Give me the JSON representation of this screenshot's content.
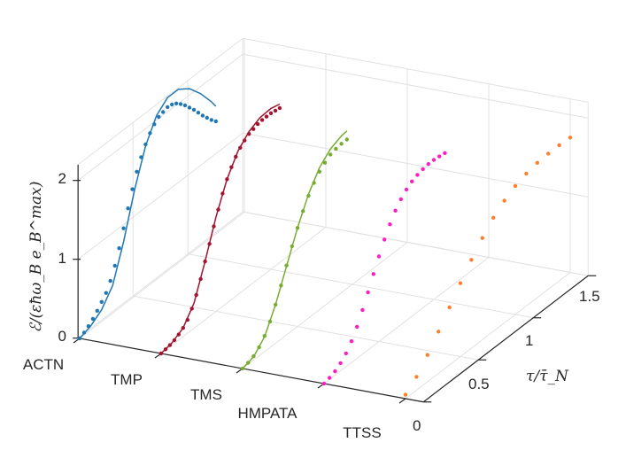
{
  "chart_data": {
    "type": "3d-line-scatter",
    "title": "",
    "xlabel": "",
    "ylabel": "τ/τ̄_N",
    "zlabel": "ℰ/(εħω_B e_B^max)",
    "categories": [
      "ACTN",
      "TMP",
      "TMS",
      "HMPATA",
      "TTSS"
    ],
    "y_ticks": [
      "0",
      "0.5",
      "1",
      "1.5"
    ],
    "z_ticks": [
      "0",
      "1",
      "2"
    ],
    "ylim": [
      0,
      1.5
    ],
    "zlim": [
      0,
      2.2
    ],
    "grid": true,
    "series": [
      {
        "name": "ACTN",
        "color": "#1f77b4",
        "has_fit_line": true,
        "points": [
          [
            0,
            0.0
          ],
          [
            0.04,
            0.03
          ],
          [
            0.08,
            0.07
          ],
          [
            0.12,
            0.12
          ],
          [
            0.16,
            0.18
          ],
          [
            0.2,
            0.25
          ],
          [
            0.24,
            0.32
          ],
          [
            0.28,
            0.43
          ],
          [
            0.32,
            0.58
          ],
          [
            0.36,
            0.76
          ],
          [
            0.4,
            0.97
          ],
          [
            0.44,
            1.18
          ],
          [
            0.48,
            1.38
          ],
          [
            0.52,
            1.56
          ],
          [
            0.56,
            1.7
          ],
          [
            0.6,
            1.82
          ],
          [
            0.64,
            1.92
          ],
          [
            0.68,
            1.99
          ],
          [
            0.72,
            2.04
          ],
          [
            0.76,
            2.06
          ],
          [
            0.8,
            2.08
          ],
          [
            0.84,
            2.07
          ],
          [
            0.88,
            2.04
          ],
          [
            0.92,
            1.99
          ],
          [
            0.96,
            1.93
          ],
          [
            1.0,
            1.86
          ],
          [
            1.04,
            1.79
          ],
          [
            1.08,
            1.71
          ],
          [
            1.12,
            1.63
          ],
          [
            1.16,
            1.56
          ],
          [
            1.2,
            1.49
          ],
          [
            1.24,
            1.43
          ]
        ],
        "fit": [
          [
            0,
            0
          ],
          [
            0.1,
            0.05
          ],
          [
            0.2,
            0.15
          ],
          [
            0.3,
            0.35
          ],
          [
            0.4,
            0.8
          ],
          [
            0.5,
            1.35
          ],
          [
            0.6,
            1.8
          ],
          [
            0.7,
            2.08
          ],
          [
            0.8,
            2.2
          ],
          [
            0.9,
            2.2
          ],
          [
            1.0,
            2.1
          ],
          [
            1.1,
            1.93
          ],
          [
            1.2,
            1.72
          ],
          [
            1.24,
            1.62
          ]
        ]
      },
      {
        "name": "TMP",
        "color": "#a2142f",
        "has_fit_line": true,
        "points": [
          [
            0,
            0.0
          ],
          [
            0.04,
            0.01
          ],
          [
            0.08,
            0.02
          ],
          [
            0.12,
            0.04
          ],
          [
            0.16,
            0.07
          ],
          [
            0.2,
            0.11
          ],
          [
            0.24,
            0.17
          ],
          [
            0.28,
            0.27
          ],
          [
            0.32,
            0.4
          ],
          [
            0.36,
            0.56
          ],
          [
            0.4,
            0.74
          ],
          [
            0.44,
            0.92
          ],
          [
            0.48,
            1.1
          ],
          [
            0.52,
            1.27
          ],
          [
            0.56,
            1.43
          ],
          [
            0.6,
            1.57
          ],
          [
            0.64,
            1.68
          ],
          [
            0.68,
            1.77
          ],
          [
            0.72,
            1.84
          ],
          [
            0.76,
            1.89
          ],
          [
            0.8,
            1.93
          ],
          [
            0.84,
            1.95
          ],
          [
            0.88,
            1.97
          ],
          [
            0.92,
            1.98
          ],
          [
            0.96,
            1.98
          ],
          [
            1.0,
            1.98
          ],
          [
            1.04,
            1.97
          ],
          [
            1.08,
            1.96
          ]
        ],
        "fit": [
          [
            0,
            0
          ],
          [
            0.1,
            0.03
          ],
          [
            0.2,
            0.11
          ],
          [
            0.3,
            0.32
          ],
          [
            0.4,
            0.74
          ],
          [
            0.5,
            1.2
          ],
          [
            0.6,
            1.57
          ],
          [
            0.7,
            1.82
          ],
          [
            0.8,
            1.96
          ],
          [
            0.9,
            2.03
          ],
          [
            1.0,
            2.04
          ],
          [
            1.08,
            2.01
          ]
        ]
      },
      {
        "name": "TMS",
        "color": "#77ac30",
        "has_fit_line": true,
        "points": [
          [
            0,
            0.0
          ],
          [
            0.05,
            0.02
          ],
          [
            0.1,
            0.05
          ],
          [
            0.15,
            0.11
          ],
          [
            0.2,
            0.2
          ],
          [
            0.25,
            0.33
          ],
          [
            0.3,
            0.49
          ],
          [
            0.35,
            0.68
          ],
          [
            0.4,
            0.88
          ],
          [
            0.45,
            1.07
          ],
          [
            0.5,
            1.25
          ],
          [
            0.55,
            1.41
          ],
          [
            0.6,
            1.55
          ],
          [
            0.65,
            1.66
          ],
          [
            0.7,
            1.75
          ],
          [
            0.75,
            1.81
          ],
          [
            0.8,
            1.86
          ],
          [
            0.85,
            1.88
          ],
          [
            0.9,
            1.89
          ],
          [
            0.95,
            1.89
          ]
        ],
        "fit": [
          [
            0,
            0
          ],
          [
            0.1,
            0.04
          ],
          [
            0.2,
            0.19
          ],
          [
            0.3,
            0.49
          ],
          [
            0.4,
            0.87
          ],
          [
            0.5,
            1.25
          ],
          [
            0.6,
            1.57
          ],
          [
            0.7,
            1.8
          ],
          [
            0.8,
            1.93
          ],
          [
            0.9,
            1.99
          ],
          [
            0.95,
            2.0
          ]
        ]
      },
      {
        "name": "HMPATA",
        "color": "#ff1dc0",
        "has_fit_line": false,
        "points": [
          [
            0,
            0.0
          ],
          [
            0.05,
            0.02
          ],
          [
            0.1,
            0.05
          ],
          [
            0.15,
            0.1
          ],
          [
            0.2,
            0.17
          ],
          [
            0.25,
            0.27
          ],
          [
            0.3,
            0.4
          ],
          [
            0.35,
            0.56
          ],
          [
            0.4,
            0.73
          ],
          [
            0.45,
            0.91
          ],
          [
            0.5,
            1.08
          ],
          [
            0.55,
            1.24
          ],
          [
            0.6,
            1.38
          ],
          [
            0.65,
            1.5
          ],
          [
            0.7,
            1.59
          ],
          [
            0.75,
            1.66
          ],
          [
            0.8,
            1.71
          ],
          [
            0.85,
            1.74
          ],
          [
            0.9,
            1.76
          ],
          [
            0.95,
            1.77
          ],
          [
            1.0,
            1.77
          ],
          [
            1.05,
            1.76
          ],
          [
            1.1,
            1.75
          ]
        ]
      },
      {
        "name": "TTSS",
        "color": "#ff7f2a",
        "has_fit_line": false,
        "points": [
          [
            0,
            0.05
          ],
          [
            0.1,
            0.17
          ],
          [
            0.2,
            0.34
          ],
          [
            0.3,
            0.53
          ],
          [
            0.4,
            0.73
          ],
          [
            0.5,
            0.93
          ],
          [
            0.6,
            1.12
          ],
          [
            0.7,
            1.29
          ],
          [
            0.8,
            1.44
          ],
          [
            0.9,
            1.55
          ],
          [
            1.0,
            1.63
          ],
          [
            1.1,
            1.68
          ],
          [
            1.2,
            1.71
          ],
          [
            1.3,
            1.72
          ],
          [
            1.4,
            1.72
          ],
          [
            1.5,
            1.71
          ]
        ]
      }
    ]
  }
}
